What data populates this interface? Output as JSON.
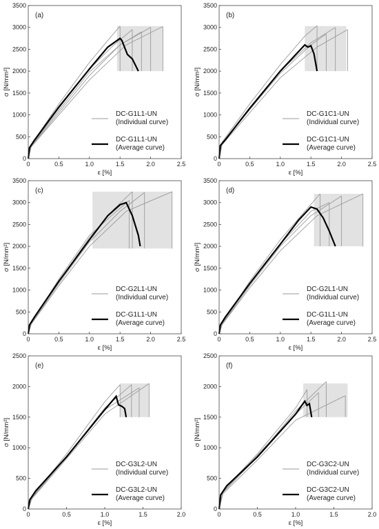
{
  "colors": {
    "individual": "#9a9a9a",
    "average": "#000000",
    "band": "#e2e2e2",
    "frame": "#444444"
  },
  "chart_data": [
    {
      "type": "line",
      "panel_label": "(a)",
      "xlabel": "ε  [%]",
      "ylabel": "σ [N/mm²]",
      "xlim": [
        0,
        2.5
      ],
      "ylim": [
        0,
        3500
      ],
      "xticks": [
        "0",
        "0.5",
        "1.0",
        "1.5",
        "2.0",
        "2.5"
      ],
      "yticks": [
        "0",
        "500",
        "1000",
        "1500",
        "2000",
        "2500",
        "3000",
        "3500"
      ],
      "legend_position": "right",
      "series": [
        {
          "name": "DC-G1L1-UN",
          "subtitle": "(Individual curve)",
          "style": "individual",
          "curves": [
            {
              "x": [
                0,
                0.05,
                0.5,
                1.0,
                1.3,
                1.5
              ],
              "y": [
                0,
                320,
                1250,
                2200,
                2700,
                3030
              ]
            },
            {
              "x": [
                0,
                0.05,
                0.5,
                1.0,
                1.4,
                1.7
              ],
              "y": [
                0,
                300,
                1150,
                2050,
                2600,
                2950
              ]
            },
            {
              "x": [
                0,
                0.05,
                0.5,
                1.0,
                1.5,
                2.0
              ],
              "y": [
                0,
                280,
                1050,
                1900,
                2600,
                3000
              ]
            },
            {
              "x": [
                0,
                0.05,
                0.5,
                1.0,
                1.6,
                2.2
              ],
              "y": [
                0,
                270,
                1000,
                1800,
                2600,
                3020
              ]
            },
            {
              "x": [
                0,
                0.05,
                0.5,
                1.0,
                1.5,
                1.85
              ],
              "y": [
                0,
                290,
                1100,
                1980,
                2600,
                2900
              ]
            }
          ],
          "band": {
            "x": [
              1.45,
              2.2
            ],
            "y_low": 2000,
            "y_high": 3030
          }
        },
        {
          "name": "DC-G1L1-UN",
          "subtitle": "(Average curve)",
          "style": "average",
          "x": [
            0,
            0.02,
            0.1,
            0.5,
            1.0,
            1.3,
            1.5,
            1.53,
            1.62,
            1.7,
            1.8
          ],
          "y": [
            0,
            250,
            420,
            1180,
            2050,
            2550,
            2750,
            2700,
            2380,
            2280,
            2000
          ]
        }
      ]
    },
    {
      "type": "line",
      "panel_label": "(b)",
      "xlabel": "ε  [%]",
      "ylabel": "σ [N/mm²]",
      "xlim": [
        0,
        2.5
      ],
      "ylim": [
        0,
        3500
      ],
      "xticks": [
        "0",
        "0.5",
        "1.0",
        "1.5",
        "2.0",
        "2.5"
      ],
      "yticks": [
        "0",
        "500",
        "1000",
        "1500",
        "2000",
        "2500",
        "3000",
        "3500"
      ],
      "legend_position": "right",
      "series": [
        {
          "name": "DC-G1C1-UN",
          "subtitle": "(Individual curve)",
          "style": "individual",
          "curves": [
            {
              "x": [
                0,
                0.05,
                0.5,
                1.0,
                1.4,
                1.6
              ],
              "y": [
                0,
                380,
                1250,
                2150,
                2800,
                3040
              ]
            },
            {
              "x": [
                0,
                0.05,
                0.5,
                1.0,
                1.5,
                1.9
              ],
              "y": [
                0,
                340,
                1150,
                2000,
                2650,
                3000
              ]
            },
            {
              "x": [
                0,
                0.05,
                0.5,
                1.0,
                1.6,
                2.1
              ],
              "y": [
                0,
                320,
                1050,
                1850,
                2550,
                2950
              ]
            },
            {
              "x": [
                0,
                0.05,
                0.5,
                1.0,
                1.5,
                1.75
              ],
              "y": [
                0,
                350,
                1120,
                1950,
                2600,
                2850
              ]
            }
          ],
          "band": {
            "x": [
              1.4,
              2.08
            ],
            "y_low": 2000,
            "y_high": 3030
          }
        },
        {
          "name": "DC-G1C1-UN",
          "subtitle": "(Average curve)",
          "style": "average",
          "x": [
            0,
            0.02,
            0.1,
            0.5,
            1.0,
            1.3,
            1.4,
            1.45,
            1.5,
            1.55,
            1.6
          ],
          "y": [
            0,
            300,
            430,
            1150,
            2000,
            2450,
            2600,
            2550,
            2580,
            2400,
            2000
          ]
        }
      ]
    },
    {
      "type": "line",
      "panel_label": "(c)",
      "xlabel": "ε  [%]",
      "ylabel": "σ [N/mm²]",
      "xlim": [
        0,
        2.5
      ],
      "ylim": [
        0,
        3500
      ],
      "xticks": [
        "0",
        "0.5",
        "1.0",
        "1.5",
        "2.0",
        "2.5"
      ],
      "yticks": [
        "0",
        "500",
        "1000",
        "1500",
        "2000",
        "2500",
        "3000",
        "3500"
      ],
      "legend_position": "right",
      "series": [
        {
          "name": "DC-G2L1-UN",
          "subtitle": "(Individual curve)",
          "style": "individual",
          "curves": [
            {
              "x": [
                0,
                0.05,
                0.5,
                1.0,
                1.4,
                1.7
              ],
              "y": [
                0,
                250,
                1200,
                2200,
                2850,
                3250
              ]
            },
            {
              "x": [
                0,
                0.05,
                0.5,
                1.0,
                1.5,
                1.9
              ],
              "y": [
                0,
                230,
                1150,
                2100,
                2800,
                3230
              ]
            },
            {
              "x": [
                0,
                0.05,
                0.5,
                1.0,
                1.6,
                2.35
              ],
              "y": [
                0,
                220,
                1100,
                2000,
                2800,
                3250
              ]
            },
            {
              "x": [
                0,
                0.05,
                0.5,
                1.0,
                1.4,
                1.65
              ],
              "y": [
                0,
                240,
                1250,
                2250,
                2750,
                3050
              ]
            }
          ],
          "band": {
            "x": [
              1.05,
              2.35
            ],
            "y_low": 1950,
            "y_high": 3250
          }
        },
        {
          "name": "DC-G1L1-UN",
          "subtitle": "(Average curve)",
          "style": "average",
          "x": [
            0,
            0.02,
            0.1,
            0.5,
            1.0,
            1.3,
            1.5,
            1.6,
            1.7,
            1.8,
            1.83
          ],
          "y": [
            0,
            200,
            380,
            1200,
            2150,
            2700,
            2950,
            3000,
            2700,
            2250,
            2000
          ]
        }
      ]
    },
    {
      "type": "line",
      "panel_label": "(d)",
      "xlabel": "ε  [%]",
      "ylabel": "σ [N/mm²]",
      "xlim": [
        0,
        2.5
      ],
      "ylim": [
        0,
        3500
      ],
      "xticks": [
        "0",
        "0.5",
        "1.0",
        "1.5",
        "2.0",
        "2.5"
      ],
      "yticks": [
        "0",
        "500",
        "1000",
        "1500",
        "2000",
        "2500",
        "3000",
        "3500"
      ],
      "legend_position": "right",
      "series": [
        {
          "name": "DC-G2L1-UN",
          "subtitle": "(Individual curve)",
          "style": "individual",
          "curves": [
            {
              "x": [
                0,
                0.05,
                0.5,
                1.0,
                1.4,
                1.65
              ],
              "y": [
                0,
                230,
                1200,
                2150,
                2800,
                3200
              ]
            },
            {
              "x": [
                0,
                0.05,
                0.5,
                1.0,
                1.5,
                2.0
              ],
              "y": [
                0,
                220,
                1100,
                2000,
                2700,
                3150
              ]
            },
            {
              "x": [
                0,
                0.05,
                0.5,
                1.0,
                1.6,
                2.35
              ],
              "y": [
                0,
                210,
                1050,
                1900,
                2700,
                3200
              ]
            },
            {
              "x": [
                0,
                0.05,
                0.5,
                1.0,
                1.5,
                1.8
              ],
              "y": [
                0,
                240,
                1150,
                2050,
                2800,
                3000
              ]
            }
          ],
          "band": {
            "x": [
              1.55,
              2.35
            ],
            "y_low": 2000,
            "y_high": 3200
          }
        },
        {
          "name": "DC-G1L1-UN",
          "subtitle": "(Average curve)",
          "style": "average",
          "x": [
            0,
            0.02,
            0.1,
            0.5,
            1.0,
            1.3,
            1.5,
            1.6,
            1.7,
            1.8,
            1.9
          ],
          "y": [
            0,
            200,
            380,
            1150,
            2050,
            2600,
            2900,
            2850,
            2650,
            2350,
            2000
          ]
        }
      ]
    },
    {
      "type": "line",
      "panel_label": "(e)",
      "xlabel": "ε  [%]",
      "ylabel": "σ [N/mm²]",
      "xlim": [
        0,
        2.0
      ],
      "ylim": [
        0,
        2500
      ],
      "xticks": [
        "0",
        "0.5",
        "1.0",
        "1.5",
        "2.0"
      ],
      "yticks": [
        "0",
        "500",
        "1000",
        "1500",
        "2000",
        "2500"
      ],
      "legend_position": "right",
      "series": [
        {
          "name": "DC-G3L2-UN",
          "subtitle": "(Individual curve)",
          "style": "individual",
          "curves": [
            {
              "x": [
                0,
                0.05,
                0.5,
                1.0,
                1.2
              ],
              "y": [
                0,
                200,
                900,
                1750,
                2030
              ]
            },
            {
              "x": [
                0,
                0.05,
                0.5,
                1.0,
                1.35
              ],
              "y": [
                0,
                180,
                850,
                1650,
                2030
              ]
            },
            {
              "x": [
                0,
                0.05,
                0.5,
                1.0,
                1.58
              ],
              "y": [
                0,
                170,
                820,
                1550,
                2050
              ]
            },
            {
              "x": [
                0,
                0.05,
                0.5,
                1.0,
                1.45
              ],
              "y": [
                0,
                190,
                860,
                1620,
                1980
              ]
            }
          ],
          "band": {
            "x": [
              1.2,
              1.58
            ],
            "y_low": 1500,
            "y_high": 2050
          }
        },
        {
          "name": "DC-G3L2-UN",
          "subtitle": "(Average curve)",
          "style": "average",
          "x": [
            0,
            0.02,
            0.1,
            0.5,
            1.0,
            1.15,
            1.18,
            1.22,
            1.26,
            1.28
          ],
          "y": [
            0,
            150,
            300,
            850,
            1620,
            1840,
            1700,
            1680,
            1640,
            1500
          ]
        }
      ]
    },
    {
      "type": "line",
      "panel_label": "(f)",
      "xlabel": "ε  [%]",
      "ylabel": "σ [N/mm²]",
      "xlim": [
        0,
        2.0
      ],
      "ylim": [
        0,
        2500
      ],
      "xticks": [
        "0",
        "0.5",
        "1.0",
        "1.5",
        "2.0"
      ],
      "yticks": [
        "0",
        "500",
        "1000",
        "1500",
        "2000",
        "2500"
      ],
      "legend_position": "right",
      "series": [
        {
          "name": "DC-G3C2-UN",
          "subtitle": "(Individual curve)",
          "style": "individual",
          "curves": [
            {
              "x": [
                0,
                0.05,
                0.5,
                1.0,
                1.15
              ],
              "y": [
                0,
                300,
                900,
                1650,
                1950
              ]
            },
            {
              "x": [
                0,
                0.05,
                0.5,
                1.0,
                1.4
              ],
              "y": [
                0,
                270,
                850,
                1600,
                2080
              ]
            },
            {
              "x": [
                0,
                0.05,
                0.5,
                1.0,
                1.65
              ],
              "y": [
                0,
                250,
                800,
                1450,
                1850
              ]
            },
            {
              "x": [
                0,
                0.05,
                0.5,
                1.0,
                1.3
              ],
              "y": [
                0,
                280,
                880,
                1550,
                1900
              ]
            }
          ],
          "band": {
            "x": [
              1.1,
              1.68
            ],
            "y_low": 1500,
            "y_high": 2050
          }
        },
        {
          "name": "DC-G3C2-UN",
          "subtitle": "(Average curve)",
          "style": "average",
          "x": [
            0,
            0.02,
            0.1,
            0.5,
            1.0,
            1.12,
            1.15,
            1.18,
            1.21
          ],
          "y": [
            0,
            230,
            380,
            850,
            1550,
            1760,
            1690,
            1720,
            1500
          ]
        }
      ]
    }
  ]
}
